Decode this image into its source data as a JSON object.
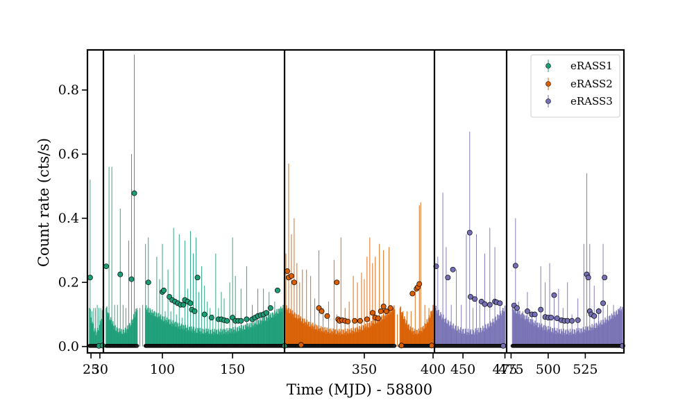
{
  "chart_data": {
    "type": "scatter",
    "title": "",
    "xlabel": "Time (MJD) - 58800",
    "ylabel": "Count rate (cts/s)",
    "ylim": [
      -0.02,
      0.925
    ],
    "yticks": [
      0.0,
      0.2,
      0.4,
      0.6,
      0.8
    ],
    "ytick_labels": [
      "0.0",
      "0.2",
      "0.4",
      "0.6",
      "0.8"
    ],
    "grid": false,
    "legend_position": "top-right",
    "broken_axis": true,
    "panels": [
      {
        "xlim": [
          23,
          32
        ],
        "ticks": [
          25,
          30
        ],
        "tick_labels": [
          "25",
          "30"
        ]
      },
      {
        "xlim": [
          58,
          187
        ],
        "ticks": [
          100,
          150
        ],
        "tick_labels": [
          "100",
          "150"
        ]
      },
      {
        "xlim": [
          292,
          401
        ],
        "ticks": [
          350,
          400
        ],
        "tick_labels": [
          "350",
          "400"
        ]
      },
      {
        "xlim": [
          433,
          476
        ],
        "ticks": [
          450,
          475
        ],
        "tick_labels": [
          "450",
          "475"
        ]
      },
      {
        "xlim": [
          472,
          551
        ],
        "ticks": [
          475,
          500,
          525
        ],
        "tick_labels": [
          "475",
          "500",
          "525"
        ]
      }
    ],
    "series": [
      {
        "name": "eRASS1",
        "color": "#1b9e77",
        "points": [
          [
            24.5,
            0.215
          ],
          [
            29.5,
            0.002
          ],
          [
            31.5,
            0.003
          ],
          [
            60,
            0.25
          ],
          [
            70,
            0.225
          ],
          [
            78,
            0.21
          ],
          [
            80,
            0.478
          ],
          [
            90,
            0.2
          ],
          [
            100,
            0.17
          ],
          [
            101,
            0.175
          ],
          [
            105,
            0.155
          ],
          [
            107,
            0.145
          ],
          [
            109,
            0.14
          ],
          [
            111,
            0.135
          ],
          [
            113,
            0.13
          ],
          [
            115,
            0.13
          ],
          [
            116,
            0.145
          ],
          [
            118,
            0.14
          ],
          [
            120,
            0.135
          ],
          [
            121,
            0.115
          ],
          [
            123,
            0.11
          ],
          [
            125,
            0.215
          ],
          [
            130,
            0.1
          ],
          [
            135,
            0.09
          ],
          [
            140,
            0.085
          ],
          [
            142,
            0.085
          ],
          [
            144,
            0.082
          ],
          [
            146,
            0.08
          ],
          [
            150,
            0.09
          ],
          [
            152,
            0.08
          ],
          [
            154,
            0.08
          ],
          [
            156,
            0.08
          ],
          [
            160,
            0.085
          ],
          [
            164,
            0.085
          ],
          [
            166,
            0.09
          ],
          [
            168,
            0.095
          ],
          [
            170,
            0.098
          ],
          [
            172,
            0.1
          ],
          [
            174,
            0.105
          ],
          [
            177,
            0.12
          ],
          [
            182,
            0.175
          ],
          [
            187,
            0.002
          ]
        ]
      },
      {
        "name": "eRASS2",
        "color": "#d95f02",
        "points": [
          [
            294,
            0.235
          ],
          [
            295,
            0.215
          ],
          [
            297,
            0.22
          ],
          [
            299,
            0.2
          ],
          [
            304,
            0.005
          ],
          [
            317,
            0.12
          ],
          [
            319,
            0.11
          ],
          [
            323,
            0.095
          ],
          [
            330,
            0.2
          ],
          [
            331,
            0.085
          ],
          [
            332,
            0.08
          ],
          [
            334,
            0.082
          ],
          [
            336,
            0.08
          ],
          [
            338,
            0.078
          ],
          [
            343,
            0.08
          ],
          [
            347,
            0.08
          ],
          [
            352,
            0.085
          ],
          [
            356,
            0.105
          ],
          [
            358,
            0.09
          ],
          [
            360,
            0.088
          ],
          [
            362,
            0.11
          ],
          [
            364,
            0.125
          ],
          [
            366,
            0.11
          ],
          [
            369,
            0.12
          ],
          [
            377,
            0.003
          ],
          [
            385,
            0.165
          ],
          [
            388,
            0.18
          ],
          [
            389,
            0.185
          ],
          [
            390,
            0.195
          ],
          [
            399,
            0.003
          ]
        ]
      },
      {
        "name": "eRASS3",
        "color": "#7570b3",
        "points": [
          [
            434,
            0.25
          ],
          [
            441,
            0.215
          ],
          [
            444,
            0.24
          ],
          [
            454,
            0.355
          ],
          [
            454.5,
            0.155
          ],
          [
            457,
            0.148
          ],
          [
            461,
            0.14
          ],
          [
            463,
            0.132
          ],
          [
            466,
            0.13
          ],
          [
            469,
            0.14
          ],
          [
            470,
            0.138
          ],
          [
            472,
            0.135
          ],
          [
            474,
            0.002
          ],
          [
            477,
            0.128
          ],
          [
            478,
            0.252
          ],
          [
            479,
            0.12
          ],
          [
            486,
            0.11
          ],
          [
            489,
            0.1
          ],
          [
            491,
            0.1
          ],
          [
            495,
            0.115
          ],
          [
            498,
            0.092
          ],
          [
            500,
            0.09
          ],
          [
            502,
            0.09
          ],
          [
            504,
            0.16
          ],
          [
            506,
            0.088
          ],
          [
            509,
            0.082
          ],
          [
            511,
            0.08
          ],
          [
            513,
            0.08
          ],
          [
            516,
            0.08
          ],
          [
            520,
            0.082
          ],
          [
            526,
            0.225
          ],
          [
            527,
            0.215
          ],
          [
            528,
            0.11
          ],
          [
            529,
            0.1
          ],
          [
            531,
            0.095
          ],
          [
            534,
            0.11
          ],
          [
            537,
            0.135
          ],
          [
            538,
            0.215
          ],
          [
            550,
            0.002
          ]
        ]
      }
    ],
    "error_bars": [
      {
        "color": "#1b9e77",
        "bars": [
          [
            24.5,
            0.52
          ],
          [
            25.5,
            0.11
          ],
          [
            26.5,
            0.12
          ],
          [
            27.5,
            0.12
          ],
          [
            28.5,
            0.13
          ],
          [
            29.5,
            0.12
          ],
          [
            30.5,
            0.12
          ],
          [
            62,
            0.56
          ],
          [
            64,
            0.56
          ],
          [
            66,
            0.13
          ],
          [
            68,
            0.13
          ],
          [
            70,
            0.43
          ],
          [
            72,
            0.13
          ],
          [
            74,
            0.12
          ],
          [
            76,
            0.33
          ],
          [
            78,
            0.6
          ],
          [
            80,
            0.91
          ],
          [
            82,
            0.12
          ],
          [
            84,
            0.12
          ],
          [
            86,
            0.13
          ],
          [
            88,
            0.32
          ],
          [
            90,
            0.34
          ],
          [
            94,
            0.11
          ],
          [
            96,
            0.28
          ],
          [
            98,
            0.21
          ],
          [
            100,
            0.32
          ],
          [
            102,
            0.11
          ],
          [
            104,
            0.24
          ],
          [
            106,
            0.11
          ],
          [
            108,
            0.37
          ],
          [
            110,
            0.1
          ],
          [
            112,
            0.35
          ],
          [
            114,
            0.09
          ],
          [
            116,
            0.33
          ],
          [
            118,
            0.18
          ],
          [
            120,
            0.36
          ],
          [
            122,
            0.29
          ],
          [
            124,
            0.34
          ],
          [
            126,
            0.17
          ],
          [
            128,
            0.25
          ],
          [
            130,
            0.19
          ],
          [
            132,
            0.14
          ],
          [
            134,
            0.12
          ],
          [
            136,
            0.1
          ],
          [
            138,
            0.29
          ],
          [
            140,
            0.12
          ],
          [
            142,
            0.17
          ],
          [
            144,
            0.15
          ],
          [
            148,
            0.2
          ],
          [
            150,
            0.34
          ],
          [
            152,
            0.22
          ],
          [
            156,
            0.18
          ],
          [
            160,
            0.25
          ],
          [
            164,
            0.13
          ],
          [
            168,
            0.18
          ],
          [
            172,
            0.18
          ],
          [
            176,
            0.17
          ],
          [
            180,
            0.14
          ],
          [
            184,
            0.12
          ]
        ]
      },
      {
        "color": "#d95f02",
        "bars": [
          [
            293,
            0.29
          ],
          [
            295,
            0.57
          ],
          [
            297,
            0.35
          ],
          [
            299,
            0.4
          ],
          [
            301,
            0.26
          ],
          [
            303,
            0.2
          ],
          [
            305,
            0.24
          ],
          [
            308,
            0.24
          ],
          [
            311,
            0.22
          ],
          [
            314,
            0.15
          ],
          [
            317,
            0.3
          ],
          [
            320,
            0.12
          ],
          [
            324,
            0.14
          ],
          [
            328,
            0.27
          ],
          [
            330,
            0.1
          ],
          [
            333,
            0.34
          ],
          [
            336,
            0.12
          ],
          [
            339,
            0.14
          ],
          [
            342,
            0.22
          ],
          [
            345,
            0.2
          ],
          [
            348,
            0.23
          ],
          [
            350,
            0.21
          ],
          [
            352,
            0.28
          ],
          [
            354,
            0.34
          ],
          [
            356,
            0.26
          ],
          [
            358,
            0.28
          ],
          [
            361,
            0.32
          ],
          [
            364,
            0.3
          ],
          [
            368,
            0.31
          ],
          [
            371,
            0.12
          ],
          [
            374,
            0.1
          ],
          [
            378,
            0.11
          ],
          [
            381,
            0.11
          ],
          [
            384,
            0.11
          ],
          [
            387,
            0.19
          ],
          [
            390,
            0.44
          ],
          [
            391,
            0.45
          ],
          [
            394,
            0.13
          ],
          [
            397,
            0.12
          ],
          [
            400,
            0.12
          ]
        ]
      },
      {
        "color": "#7570b3",
        "bars": [
          [
            435,
            0.28
          ],
          [
            438,
            0.48
          ],
          [
            440,
            0.31
          ],
          [
            443,
            0.13
          ],
          [
            446,
            0.24
          ],
          [
            449,
            0.13
          ],
          [
            452,
            0.35
          ],
          [
            454,
            0.67
          ],
          [
            456,
            0.12
          ],
          [
            458,
            0.35
          ],
          [
            460,
            0.13
          ],
          [
            463,
            0.29
          ],
          [
            466,
            0.37
          ],
          [
            469,
            0.31
          ],
          [
            472,
            0.13
          ],
          [
            474,
            0.12
          ],
          [
            478,
            0.4
          ],
          [
            480,
            0.14
          ],
          [
            483,
            0.11
          ],
          [
            486,
            0.17
          ],
          [
            489,
            0.1
          ],
          [
            492,
            0.1
          ],
          [
            495,
            0.25
          ],
          [
            498,
            0.2
          ],
          [
            501,
            0.26
          ],
          [
            504,
            0.15
          ],
          [
            507,
            0.18
          ],
          [
            510,
            0.12
          ],
          [
            513,
            0.2
          ],
          [
            516,
            0.1
          ],
          [
            520,
            0.15
          ],
          [
            524,
            0.32
          ],
          [
            526,
            0.54
          ],
          [
            528,
            0.32
          ],
          [
            531,
            0.19
          ],
          [
            534,
            0.12
          ],
          [
            537,
            0.32
          ],
          [
            540,
            0.13
          ],
          [
            544,
            0.13
          ],
          [
            548,
            0.12
          ]
        ]
      }
    ]
  }
}
